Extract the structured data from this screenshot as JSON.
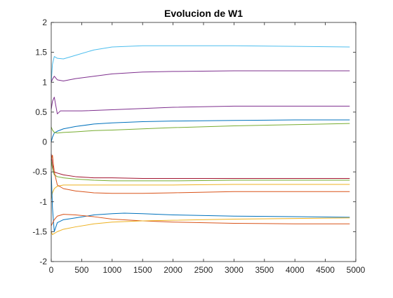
{
  "chart_data": {
    "type": "line",
    "title": "Evolucion de W1",
    "xlabel": "",
    "ylabel": "",
    "xlim": [
      0,
      5000
    ],
    "ylim": [
      -2,
      2
    ],
    "xticks": [
      0,
      500,
      1000,
      1500,
      2000,
      2500,
      3000,
      3500,
      4000,
      4500,
      5000
    ],
    "yticks": [
      -2,
      -1.5,
      -1,
      -0.5,
      0,
      0.5,
      1,
      1.5,
      2
    ],
    "xtick_labels": [
      "0",
      "500",
      "1000",
      "1500",
      "2000",
      "2500",
      "3000",
      "3500",
      "4000",
      "4500",
      "5000"
    ],
    "ytick_labels": [
      "-2",
      "-1.5",
      "-1",
      "-0.5",
      "0",
      "0.5",
      "1",
      "1.5",
      "2"
    ],
    "grid": false,
    "legend": "none",
    "series": [
      {
        "color": "#4dbeee",
        "x": [
          0,
          20,
          50,
          100,
          200,
          400,
          700,
          1000,
          1500,
          2000,
          3000,
          4000,
          4900
        ],
        "y": [
          1.0,
          1.3,
          1.43,
          1.4,
          1.39,
          1.45,
          1.54,
          1.59,
          1.61,
          1.61,
          1.61,
          1.6,
          1.59
        ]
      },
      {
        "color": "#7e2f8e",
        "x": [
          0,
          20,
          50,
          100,
          200,
          400,
          700,
          1000,
          1500,
          2000,
          3000,
          4000,
          4900
        ],
        "y": [
          1.0,
          1.05,
          1.1,
          1.04,
          1.02,
          1.06,
          1.1,
          1.14,
          1.17,
          1.18,
          1.19,
          1.19,
          1.19
        ]
      },
      {
        "color": "#7e2f8e",
        "x": [
          0,
          20,
          50,
          100,
          150,
          250,
          500,
          1000,
          1500,
          2000,
          3000,
          4000,
          4900
        ],
        "y": [
          0.55,
          0.68,
          0.75,
          0.47,
          0.52,
          0.52,
          0.52,
          0.54,
          0.56,
          0.58,
          0.6,
          0.6,
          0.6
        ]
      },
      {
        "color": "#0072bd",
        "x": [
          0,
          20,
          50,
          100,
          200,
          400,
          700,
          1000,
          1500,
          2000,
          3000,
          4000,
          4900
        ],
        "y": [
          0.0,
          0.08,
          0.15,
          0.18,
          0.22,
          0.26,
          0.3,
          0.32,
          0.34,
          0.35,
          0.36,
          0.37,
          0.37
        ]
      },
      {
        "color": "#77ac30",
        "x": [
          0,
          20,
          50,
          100,
          200,
          400,
          700,
          1000,
          1500,
          2000,
          3000,
          4000,
          4900
        ],
        "y": [
          0.25,
          0.2,
          0.16,
          0.15,
          0.16,
          0.17,
          0.19,
          0.2,
          0.22,
          0.24,
          0.27,
          0.29,
          0.31
        ]
      },
      {
        "color": "#a2142f",
        "x": [
          0,
          20,
          50,
          100,
          200,
          400,
          700,
          1000,
          1500,
          2000,
          3000,
          4000,
          4900
        ],
        "y": [
          -0.2,
          -0.38,
          -0.5,
          -0.52,
          -0.55,
          -0.58,
          -0.6,
          -0.6,
          -0.61,
          -0.61,
          -0.61,
          -0.61,
          -0.61
        ]
      },
      {
        "color": "#77ac30",
        "x": [
          0,
          20,
          50,
          100,
          200,
          400,
          700,
          1000,
          1500,
          2000,
          3000,
          4000,
          4900
        ],
        "y": [
          -0.3,
          -0.45,
          -0.55,
          -0.58,
          -0.6,
          -0.62,
          -0.64,
          -0.65,
          -0.65,
          -0.65,
          -0.64,
          -0.64,
          -0.64
        ]
      },
      {
        "color": "#edb120",
        "x": [
          0,
          20,
          50,
          100,
          200,
          400,
          700,
          1000,
          1500,
          2000,
          3000,
          4000,
          4900
        ],
        "y": [
          -0.95,
          -0.85,
          -0.78,
          -0.74,
          -0.72,
          -0.72,
          -0.72,
          -0.72,
          -0.72,
          -0.72,
          -0.71,
          -0.71,
          -0.71
        ]
      },
      {
        "color": "#d95319",
        "x": [
          0,
          20,
          50,
          100,
          200,
          400,
          700,
          1000,
          1500,
          2000,
          3000,
          4000,
          4900
        ],
        "y": [
          -0.3,
          -0.22,
          -0.5,
          -0.72,
          -0.78,
          -0.82,
          -0.85,
          -0.86,
          -0.86,
          -0.85,
          -0.83,
          -0.83,
          -0.83
        ]
      },
      {
        "color": "#0072bd",
        "x": [
          0,
          20,
          50,
          100,
          200,
          400,
          700,
          1000,
          1200,
          1500,
          2000,
          3000,
          4000,
          4900
        ],
        "y": [
          -0.5,
          -1.1,
          -1.5,
          -1.35,
          -1.3,
          -1.27,
          -1.22,
          -1.2,
          -1.19,
          -1.2,
          -1.22,
          -1.24,
          -1.25,
          -1.26
        ]
      },
      {
        "color": "#d95319",
        "x": [
          0,
          50,
          100,
          200,
          400,
          700,
          1000,
          1500,
          2000,
          3000,
          4000,
          4900
        ],
        "y": [
          -1.4,
          -1.3,
          -1.24,
          -1.21,
          -1.22,
          -1.25,
          -1.29,
          -1.32,
          -1.34,
          -1.36,
          -1.37,
          -1.37
        ]
      },
      {
        "color": "#edb120",
        "x": [
          0,
          20,
          50,
          100,
          200,
          400,
          700,
          1000,
          1500,
          2000,
          3000,
          4000,
          4900
        ],
        "y": [
          -1.5,
          -1.55,
          -1.53,
          -1.5,
          -1.46,
          -1.42,
          -1.37,
          -1.34,
          -1.32,
          -1.31,
          -1.29,
          -1.28,
          -1.27
        ]
      }
    ]
  }
}
